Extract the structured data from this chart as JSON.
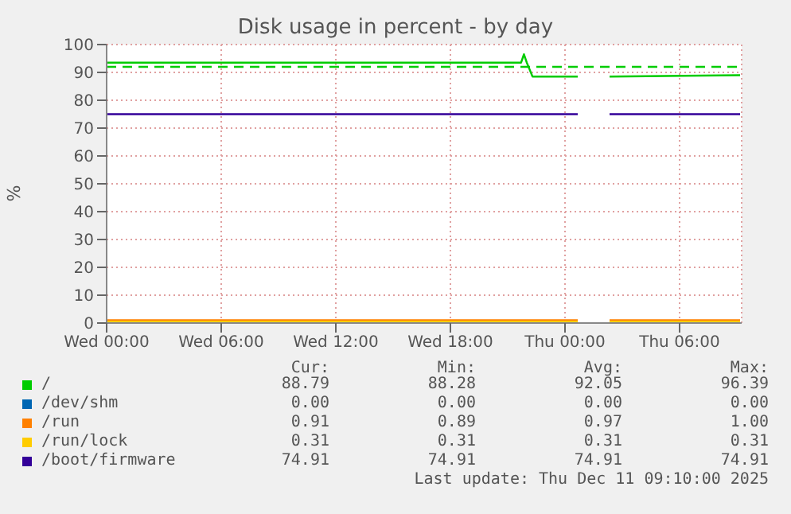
{
  "chart_data": {
    "type": "line",
    "title": "Disk usage in percent - by day",
    "ylabel": "%",
    "xlim": [
      "2025-12-10T00:00",
      "2025-12-11T09:15"
    ],
    "xticks": [
      {
        "value": "2025-12-10T00:00",
        "label": "Wed 00:00"
      },
      {
        "value": "2025-12-10T06:00",
        "label": "Wed 06:00"
      },
      {
        "value": "2025-12-10T12:00",
        "label": "Wed 12:00"
      },
      {
        "value": "2025-12-10T18:00",
        "label": "Wed 18:00"
      },
      {
        "value": "2025-12-11T00:00",
        "label": "Thu 00:00"
      },
      {
        "value": "2025-12-11T06:00",
        "label": "Thu 06:00"
      }
    ],
    "ylim": [
      0,
      100
    ],
    "yticks": [
      0,
      10,
      20,
      30,
      40,
      50,
      60,
      70,
      80,
      90,
      100
    ],
    "grid": true,
    "legend": "bottom",
    "marker": "none",
    "ref_lines": [
      {
        "axis": "y",
        "value": 92,
        "color": "#00cc00",
        "line_style": "dashed"
      }
    ],
    "series": [
      {
        "name": "/",
        "color": "#00cc00",
        "x": [
          "2025-12-10T00:00",
          "2025-12-10T21:42",
          "2025-12-10T21:51",
          "2025-12-10T22:00",
          "2025-12-10T22:18",
          "2025-12-11T00:40",
          "2025-12-11T00:48",
          "2025-12-11T02:20",
          "2025-12-11T09:10"
        ],
        "values": [
          93.5,
          93.5,
          96.5,
          93.5,
          88.5,
          88.5,
          null,
          88.5,
          89
        ]
      },
      {
        "name": "/dev/shm",
        "color": "#0066b3"
      },
      {
        "name": "/run",
        "color": "#ff8000",
        "x": [
          "2025-12-10T00:00",
          "2025-12-11T00:40",
          "2025-12-11T00:48",
          "2025-12-11T02:20",
          "2025-12-11T09:10"
        ],
        "values": [
          1,
          1,
          null,
          1,
          1
        ]
      },
      {
        "name": "/run/lock",
        "color": "#ffcc00",
        "x": [
          "2025-12-10T00:00",
          "2025-12-11T00:40",
          "2025-12-11T00:48",
          "2025-12-11T02:20",
          "2025-12-11T09:10"
        ],
        "values": [
          0.5,
          0.5,
          null,
          0.5,
          0.5
        ]
      },
      {
        "name": "/boot/firmware",
        "color": "#330099",
        "x": [
          "2025-12-10T00:00",
          "2025-12-11T00:40",
          "2025-12-11T00:48",
          "2025-12-11T02:20",
          "2025-12-11T09:10"
        ],
        "values": [
          75,
          75,
          null,
          75,
          75
        ]
      }
    ],
    "annotations": [
      "Cur:",
      "Min:",
      "Avg:",
      "Max:",
      "88.79",
      "88.28",
      "92.05",
      "96.39",
      "0.00",
      "0.00",
      "0.00",
      "0.00",
      "0.91",
      "0.89",
      "0.97",
      "1.00",
      "0.31",
      "0.31",
      "0.31",
      "0.31",
      "74.91",
      "74.91",
      "74.91",
      "74.91",
      "Last update: Thu Dec 11 09:10:00 2025"
    ]
  }
}
